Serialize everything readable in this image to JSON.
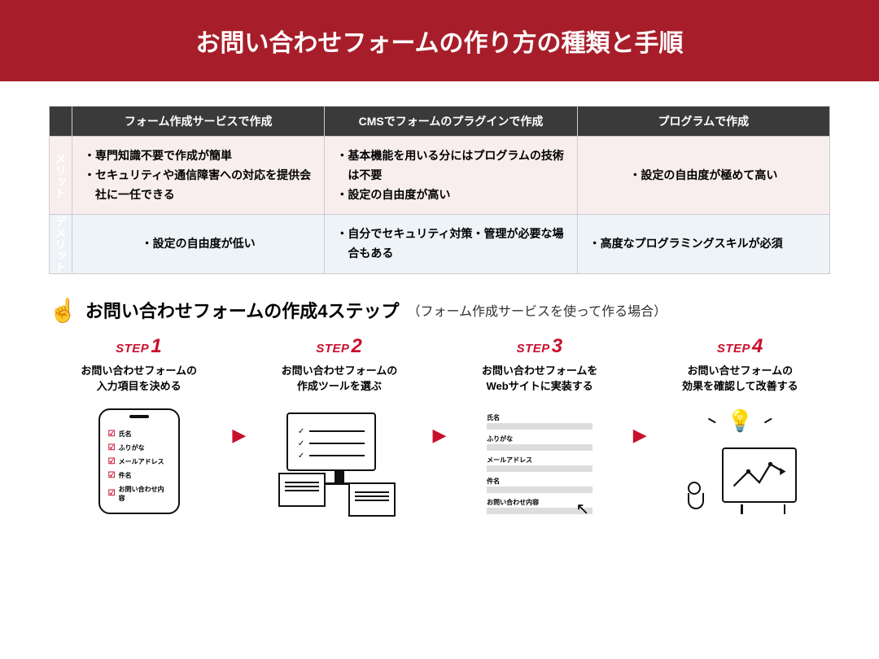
{
  "header": {
    "title": "お問い合わせフォームの作り方の種類と手順"
  },
  "table": {
    "columns": [
      "フォーム作成サービスで作成",
      "CMSでフォームのプラグインで作成",
      "プログラムで作成"
    ],
    "rowLabels": {
      "merit": "メリット",
      "demerit": "デメリット"
    },
    "merit": [
      [
        "専門知識不要で作成が簡単",
        "セキュリティや通信障害への対応を提供会社に一任できる"
      ],
      [
        "基本機能を用いる分にはプログラムの技術は不要",
        "設定の自由度が高い"
      ],
      [
        "設定の自由度が極めて高い"
      ]
    ],
    "demerit": [
      [
        "設定の自由度が低い"
      ],
      [
        "自分でセキュリティ対策・管理が必要な場合もある"
      ],
      [
        "高度なプログラミングスキルが必須"
      ]
    ],
    "colors": {
      "header": "#3a3a3a",
      "meritBg": "#f9eeee",
      "demeritBg": "#eef3f8",
      "meritLabel": "#a71e2a",
      "demeritLabel": "#2a5b9e"
    }
  },
  "stepsHeader": {
    "title": "お問い合わせフォームの作成4ステップ",
    "subtitle": "（フォーム作成サービスを使って作る場合）"
  },
  "steps": [
    {
      "label": "STEP",
      "num": "1",
      "desc": "お問い合わせフォームの\n入力項目を決める",
      "fields": [
        "氏名",
        "ふりがな",
        "メールアドレス",
        "件名",
        "お問い合わせ内容"
      ]
    },
    {
      "label": "STEP",
      "num": "2",
      "desc": "お問い合わせフォームの\n作成ツールを選ぶ"
    },
    {
      "label": "STEP",
      "num": "3",
      "desc": "お問い合わせフォームを\nWebサイトに実装する",
      "fields": [
        "氏名",
        "ふりがな",
        "メールアドレス",
        "件名",
        "お問い合わせ内容"
      ]
    },
    {
      "label": "STEP",
      "num": "4",
      "desc": "お問い合せフォームの\n効果を確認して改善する"
    }
  ],
  "colors": {
    "brandRed": "#a71e2a",
    "stepRed": "#c8102e"
  }
}
